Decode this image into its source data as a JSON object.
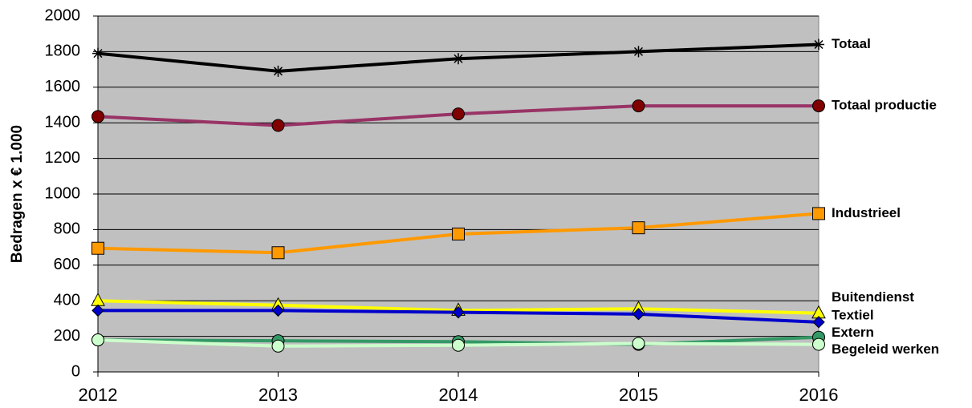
{
  "chart_data": {
    "type": "line",
    "y_label": "Bedragen x € 1.000",
    "categories": [
      "2012",
      "2013",
      "2014",
      "2015",
      "2016"
    ],
    "ylim": [
      0,
      2000
    ],
    "yticks": [
      0,
      200,
      400,
      600,
      800,
      1000,
      1200,
      1400,
      1600,
      1800,
      2000
    ],
    "grid": true,
    "background": "#c0c0c0",
    "series": [
      {
        "name": "Totaal",
        "color": "#000000",
        "marker": "asterisk",
        "marker_color": "#000000",
        "values": [
          1790,
          1690,
          1760,
          1800,
          1840
        ]
      },
      {
        "name": "Totaal productie",
        "color": "#993366",
        "marker": "circle",
        "marker_color": "#800000",
        "values": [
          1435,
          1385,
          1450,
          1495,
          1495
        ]
      },
      {
        "name": "Industrieel",
        "color": "#ff9900",
        "marker": "square",
        "marker_color": "#ff9900",
        "values": [
          695,
          670,
          775,
          810,
          890
        ]
      },
      {
        "name": "Buitendienst",
        "color": "#ffff00",
        "marker": "triangle",
        "marker_color": "#ffff00",
        "values": [
          400,
          375,
          345,
          355,
          330
        ]
      },
      {
        "name": "Textiel",
        "color": "#0000cc",
        "marker": "diamond",
        "marker_color": "#0000cc",
        "values": [
          345,
          345,
          335,
          325,
          280
        ]
      },
      {
        "name": "Extern",
        "color": "#339966",
        "marker": "circle",
        "marker_color": "#339966",
        "values": [
          180,
          175,
          170,
          155,
          195
        ]
      },
      {
        "name": "Begeleid werken",
        "color": "#ccffcc",
        "marker": "circle",
        "marker_color": "#ccffcc",
        "values": [
          180,
          145,
          150,
          160,
          155
        ]
      }
    ]
  }
}
